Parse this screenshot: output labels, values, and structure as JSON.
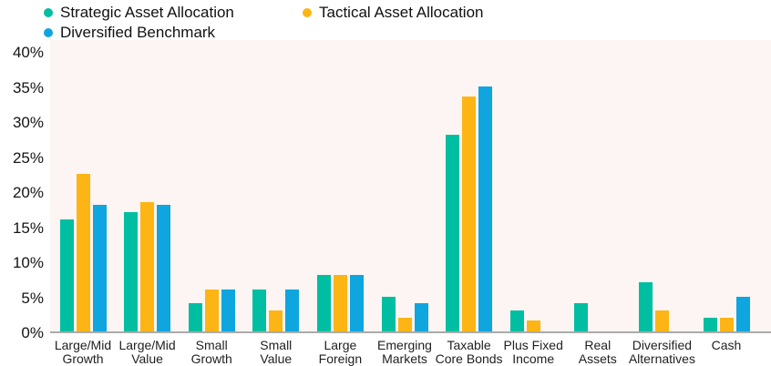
{
  "chart_data": {
    "type": "bar",
    "title": "",
    "xlabel": "",
    "ylabel": "",
    "ylim": [
      0,
      40
    ],
    "ytick_step": 5,
    "yticks": [
      "0%",
      "5%",
      "10%",
      "15%",
      "20%",
      "25%",
      "30%",
      "35%",
      "40%"
    ],
    "grid": false,
    "legend_position": "top-left",
    "plot_background": "#FCF5F3",
    "axis_line_color": "#ABABAB",
    "categories": [
      [
        "Large/Mid",
        "Growth"
      ],
      [
        "Large/Mid",
        "Value"
      ],
      [
        "Small",
        "Growth"
      ],
      [
        "Small",
        "Value"
      ],
      [
        "Large",
        "Foreign"
      ],
      [
        "Emerging",
        "Markets"
      ],
      [
        "Taxable",
        "Core Bonds"
      ],
      [
        "Plus Fixed",
        "Income"
      ],
      [
        "Real",
        "Assets"
      ],
      [
        "Diversified",
        "Alternatives"
      ],
      [
        "Cash"
      ]
    ],
    "series": [
      {
        "name": "Strategic Asset Allocation",
        "color": "#00BEA1",
        "values": [
          16,
          17,
          4,
          6,
          8,
          5,
          28,
          3,
          4,
          7,
          2
        ]
      },
      {
        "name": "Tactical Asset Allocation",
        "color": "#FCB514",
        "values": [
          22.5,
          18.5,
          6,
          3,
          8,
          2,
          33.5,
          1.5,
          0,
          3,
          2
        ]
      },
      {
        "name": "Diversified Benchmark",
        "color": "#0FA5DF",
        "values": [
          18,
          18,
          6,
          6,
          8,
          4,
          35,
          0,
          0,
          0,
          5
        ]
      }
    ]
  }
}
